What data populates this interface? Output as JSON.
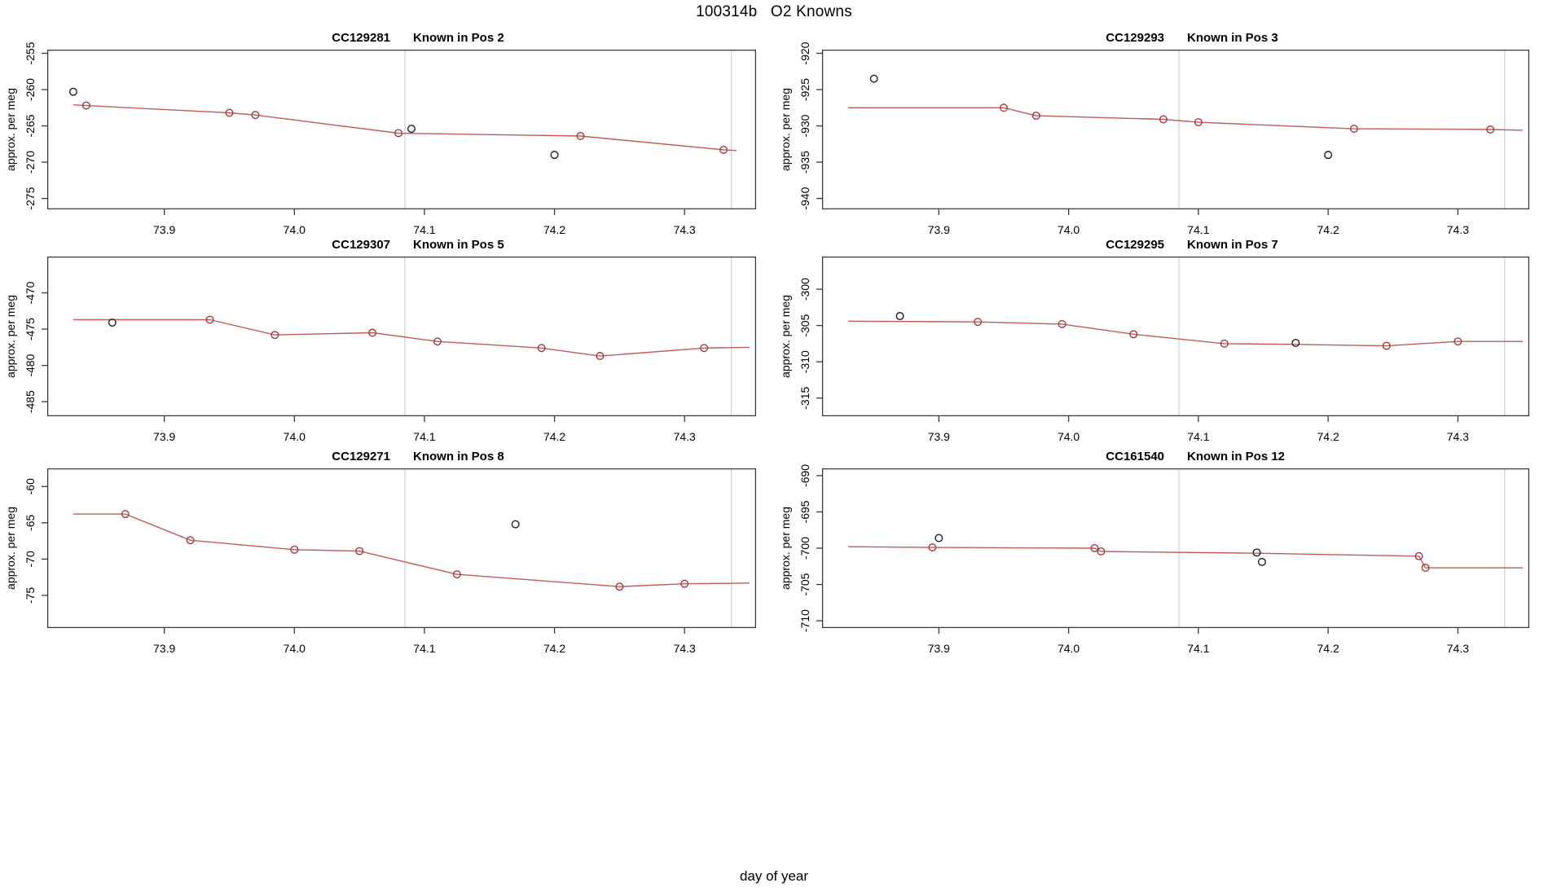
{
  "main_title": "100314b   O2 Knowns",
  "x_axis_label": "day of year",
  "y_axis_label": "approx. per meg",
  "colors": {
    "fit_line": "#bf5b5b",
    "point_stroke": "#a03c3c",
    "flagged_stroke": "#1f1f1f",
    "reference_line": "#d6d6d6",
    "frame": "#3a3a3a",
    "text": "#000000"
  },
  "x_axis": {
    "lim": [
      73.81,
      74.355
    ],
    "ticks": [
      73.9,
      74.0,
      74.1,
      74.2,
      74.3
    ],
    "tick_labels": [
      "73.9",
      "74.0",
      "74.1",
      "74.2",
      "74.3"
    ],
    "reference_lines": [
      74.085,
      74.336
    ]
  },
  "chart_data": [
    {
      "type": "line",
      "sample_id": "CC129281",
      "pos_label": "Known in Pos 2",
      "ylabel": "approx. per meg",
      "ylim": [
        -276.5,
        -254.5
      ],
      "yticks": [
        -255,
        -260,
        -265,
        -270,
        -275
      ],
      "fit_line": [
        [
          73.83,
          -262.1
        ],
        [
          73.84,
          -262.2
        ],
        [
          73.95,
          -263.2
        ],
        [
          73.97,
          -263.5
        ],
        [
          74.08,
          -266.0
        ],
        [
          74.22,
          -266.4
        ],
        [
          74.33,
          -268.3
        ],
        [
          74.34,
          -268.4
        ]
      ],
      "points": [
        [
          73.84,
          -262.2
        ],
        [
          73.95,
          -263.2
        ],
        [
          73.97,
          -263.5
        ],
        [
          74.08,
          -266.0
        ],
        [
          74.22,
          -266.4
        ],
        [
          74.33,
          -268.3
        ]
      ],
      "flagged_points": [
        [
          73.83,
          -260.3
        ],
        [
          74.09,
          -265.4
        ],
        [
          74.2,
          -269.0
        ]
      ]
    },
    {
      "type": "line",
      "sample_id": "CC129293",
      "pos_label": "Known in Pos 3",
      "ylabel": "approx. per meg",
      "ylim": [
        -941.5,
        -919.5
      ],
      "yticks": [
        -920,
        -925,
        -930,
        -935,
        -940
      ],
      "fit_line": [
        [
          73.83,
          -927.5
        ],
        [
          73.95,
          -927.5
        ],
        [
          73.975,
          -928.6
        ],
        [
          74.073,
          -929.1
        ],
        [
          74.1,
          -929.5
        ],
        [
          74.22,
          -930.4
        ],
        [
          74.325,
          -930.5
        ],
        [
          74.35,
          -930.6
        ]
      ],
      "points": [
        [
          73.95,
          -927.5
        ],
        [
          73.975,
          -928.6
        ],
        [
          74.073,
          -929.1
        ],
        [
          74.1,
          -929.5
        ],
        [
          74.22,
          -930.4
        ],
        [
          74.325,
          -930.5
        ]
      ],
      "flagged_points": [
        [
          73.85,
          -923.5
        ],
        [
          74.2,
          -934.0
        ]
      ]
    },
    {
      "type": "line",
      "sample_id": "CC129307",
      "pos_label": "Known in Pos 5",
      "ylabel": "approx. per meg",
      "ylim": [
        -487.0,
        -465.0
      ],
      "yticks": [
        -470,
        -475,
        -480,
        -485
      ],
      "fit_line": [
        [
          73.83,
          -473.7
        ],
        [
          73.935,
          -473.7
        ],
        [
          73.985,
          -475.8
        ],
        [
          74.06,
          -475.5
        ],
        [
          74.11,
          -476.7
        ],
        [
          74.19,
          -477.6
        ],
        [
          74.235,
          -478.7
        ],
        [
          74.315,
          -477.6
        ],
        [
          74.35,
          -477.5
        ]
      ],
      "points": [
        [
          73.935,
          -473.7
        ],
        [
          73.985,
          -475.8
        ],
        [
          74.06,
          -475.5
        ],
        [
          74.11,
          -476.7
        ],
        [
          74.19,
          -477.6
        ],
        [
          74.235,
          -478.7
        ],
        [
          74.315,
          -477.6
        ]
      ],
      "flagged_points": [
        [
          73.86,
          -474.1
        ]
      ]
    },
    {
      "type": "line",
      "sample_id": "CC129295",
      "pos_label": "Known in Pos 7",
      "ylabel": "approx. per meg",
      "ylim": [
        -317.5,
        -295.5
      ],
      "yticks": [
        -300,
        -305,
        -310,
        -315
      ],
      "fit_line": [
        [
          73.83,
          -304.4
        ],
        [
          73.93,
          -304.5
        ],
        [
          73.995,
          -304.8
        ],
        [
          74.05,
          -306.2
        ],
        [
          74.12,
          -307.5
        ],
        [
          74.175,
          -307.6
        ],
        [
          74.245,
          -307.8
        ],
        [
          74.3,
          -307.2
        ],
        [
          74.35,
          -307.2
        ]
      ],
      "points": [
        [
          73.93,
          -304.5
        ],
        [
          73.995,
          -304.8
        ],
        [
          74.05,
          -306.2
        ],
        [
          74.12,
          -307.5
        ],
        [
          74.245,
          -307.8
        ],
        [
          74.3,
          -307.2
        ]
      ],
      "flagged_points": [
        [
          73.87,
          -303.7
        ],
        [
          74.175,
          -307.4
        ]
      ]
    },
    {
      "type": "line",
      "sample_id": "CC129271",
      "pos_label": "Known in Pos 8",
      "ylabel": "approx. per meg",
      "ylim": [
        -79.5,
        -57.5
      ],
      "yticks": [
        -60,
        -65,
        -70,
        -75
      ],
      "fit_line": [
        [
          73.83,
          -63.8
        ],
        [
          73.87,
          -63.8
        ],
        [
          73.92,
          -67.4
        ],
        [
          74.0,
          -68.7
        ],
        [
          74.05,
          -68.9
        ],
        [
          74.125,
          -72.1
        ],
        [
          74.25,
          -73.8
        ],
        [
          74.3,
          -73.4
        ],
        [
          74.35,
          -73.3
        ]
      ],
      "points": [
        [
          73.87,
          -63.8
        ],
        [
          73.92,
          -67.4
        ],
        [
          74.0,
          -68.7
        ],
        [
          74.05,
          -68.9
        ],
        [
          74.125,
          -72.1
        ],
        [
          74.25,
          -73.8
        ],
        [
          74.3,
          -73.4
        ]
      ],
      "flagged_points": [
        [
          74.17,
          -65.2
        ]
      ]
    },
    {
      "type": "line",
      "sample_id": "CC161540",
      "pos_label": "Known in Pos 12",
      "ylabel": "approx. per meg",
      "ylim": [
        -711.0,
        -689.0
      ],
      "yticks": [
        -690,
        -695,
        -700,
        -705,
        -710
      ],
      "fit_line": [
        [
          73.83,
          -699.8
        ],
        [
          73.895,
          -699.9
        ],
        [
          74.02,
          -700.0
        ],
        [
          74.025,
          -700.45
        ],
        [
          74.145,
          -700.7
        ],
        [
          74.27,
          -701.1
        ],
        [
          74.275,
          -702.7
        ],
        [
          74.35,
          -702.7
        ]
      ],
      "points": [
        [
          73.895,
          -699.9
        ],
        [
          74.02,
          -700.0
        ],
        [
          74.025,
          -700.45
        ],
        [
          74.27,
          -701.1
        ],
        [
          74.275,
          -702.7
        ]
      ],
      "flagged_points": [
        [
          73.9,
          -698.6
        ],
        [
          74.145,
          -700.6
        ],
        [
          74.149,
          -701.9
        ]
      ]
    }
  ]
}
